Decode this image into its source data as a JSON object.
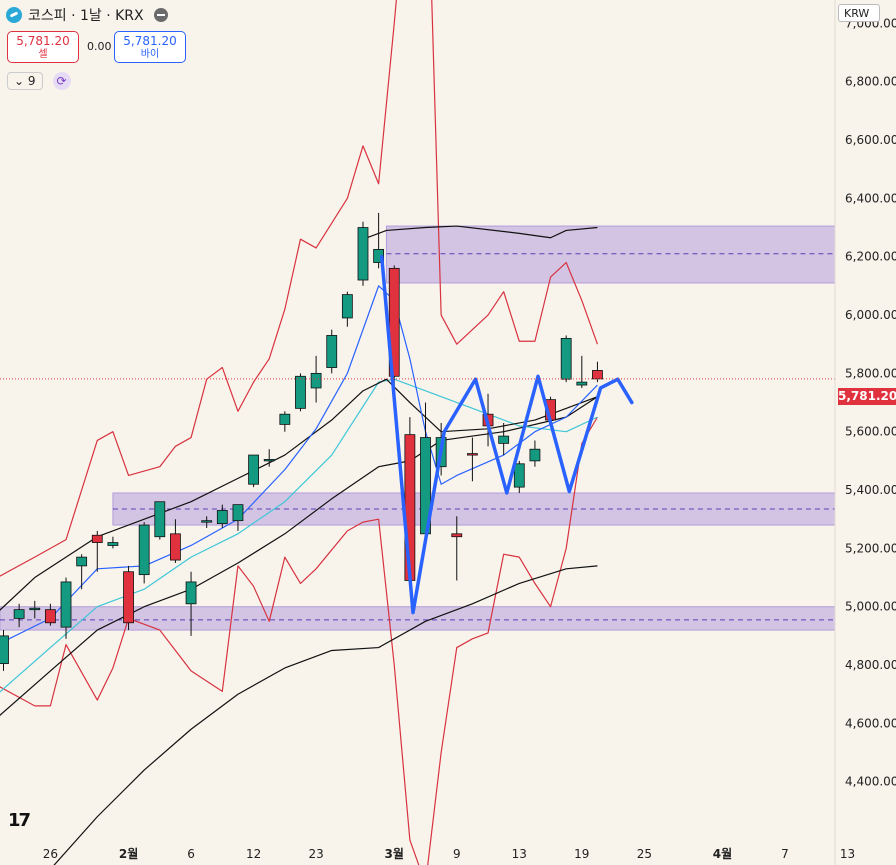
{
  "header": {
    "title": "코스피 · 1날 · KRX",
    "sell_price": "5,781.20",
    "sell_label": "셀",
    "spread": "0.00",
    "buy_price": "5,781.20",
    "buy_label": "바이",
    "indicator_count": "9",
    "currency": "KRW"
  },
  "last_price_label": "5,781.20",
  "tv_logo": "17",
  "colors": {
    "background": "#f8f4ec",
    "up": "#159a82",
    "down": "#e0313f",
    "zone": "#b39ddb",
    "bollinger": "#d8323f",
    "ma_black": "#111111",
    "ma_blue": "#2962ff",
    "ma_cyan": "#3fc6d8",
    "pattern": "#2962ff"
  },
  "chart_data": {
    "type": "candlestick",
    "y_ticks": [
      "7,000.00",
      "6,800.00",
      "6,600.00",
      "6,400.00",
      "6,200.00",
      "6,000.00",
      "5,800.00",
      "5,600.00",
      "5,400.00",
      "5,200.00",
      "5,000.00",
      "4,800.00",
      "4,600.00",
      "4,400.00"
    ],
    "y_tick_values": [
      7000,
      6800,
      6600,
      6400,
      6200,
      6000,
      5800,
      5600,
      5400,
      5200,
      5000,
      4800,
      4600,
      4400
    ],
    "ylim": [
      4190,
      7080
    ],
    "x_ticks": [
      {
        "label": "26",
        "i": 3,
        "bold": false
      },
      {
        "label": "2월",
        "i": 8,
        "bold": true
      },
      {
        "label": "6",
        "i": 12,
        "bold": false
      },
      {
        "label": "12",
        "i": 16,
        "bold": false
      },
      {
        "label": "23",
        "i": 20,
        "bold": false
      },
      {
        "label": "3월",
        "i": 25,
        "bold": true
      },
      {
        "label": "9",
        "i": 29,
        "bold": false
      },
      {
        "label": "13",
        "i": 33,
        "bold": false
      },
      {
        "label": "19",
        "i": 37,
        "bold": false
      },
      {
        "label": "25",
        "i": 41,
        "bold": false
      },
      {
        "label": "4월",
        "i": 46,
        "bold": true
      },
      {
        "label": "7",
        "i": 50,
        "bold": false
      },
      {
        "label": "13",
        "i": 54,
        "bold": false
      }
    ],
    "last_price": 5781.2,
    "candles": [
      {
        "i": 0,
        "o": 4805,
        "h": 4920,
        "l": 4780,
        "c": 4900
      },
      {
        "i": 1,
        "o": 4960,
        "h": 5010,
        "l": 4930,
        "c": 4990
      },
      {
        "i": 2,
        "o": 4995,
        "h": 5020,
        "l": 4960,
        "c": 4995
      },
      {
        "i": 3,
        "o": 4990,
        "h": 5010,
        "l": 4935,
        "c": 4945
      },
      {
        "i": 4,
        "o": 4930,
        "h": 5100,
        "l": 4890,
        "c": 5085
      },
      {
        "i": 5,
        "o": 5140,
        "h": 5180,
        "l": 5060,
        "c": 5170
      },
      {
        "i": 6,
        "o": 5245,
        "h": 5260,
        "l": 5120,
        "c": 5220
      },
      {
        "i": 7,
        "o": 5210,
        "h": 5240,
        "l": 5200,
        "c": 5220
      },
      {
        "i": 8,
        "o": 5120,
        "h": 5140,
        "l": 4920,
        "c": 4945
      },
      {
        "i": 9,
        "o": 5110,
        "h": 5290,
        "l": 5080,
        "c": 5280
      },
      {
        "i": 10,
        "o": 5240,
        "h": 5360,
        "l": 5230,
        "c": 5360
      },
      {
        "i": 11,
        "o": 5250,
        "h": 5300,
        "l": 5150,
        "c": 5160
      },
      {
        "i": 12,
        "o": 5010,
        "h": 5120,
        "l": 4900,
        "c": 5085
      },
      {
        "i": 13,
        "o": 5295,
        "h": 5310,
        "l": 5270,
        "c": 5295
      },
      {
        "i": 14,
        "o": 5285,
        "h": 5350,
        "l": 5270,
        "c": 5330
      },
      {
        "i": 15,
        "o": 5295,
        "h": 5350,
        "l": 5260,
        "c": 5350
      },
      {
        "i": 16,
        "o": 5420,
        "h": 5520,
        "l": 5410,
        "c": 5520
      },
      {
        "i": 17,
        "o": 5505,
        "h": 5540,
        "l": 5480,
        "c": 5505
      },
      {
        "i": 18,
        "o": 5625,
        "h": 5670,
        "l": 5600,
        "c": 5660
      },
      {
        "i": 19,
        "o": 5680,
        "h": 5800,
        "l": 5670,
        "c": 5790
      },
      {
        "i": 20,
        "o": 5750,
        "h": 5860,
        "l": 5700,
        "c": 5800
      },
      {
        "i": 21,
        "o": 5820,
        "h": 5950,
        "l": 5800,
        "c": 5930
      },
      {
        "i": 22,
        "o": 5990,
        "h": 6080,
        "l": 5960,
        "c": 6070
      },
      {
        "i": 23,
        "o": 6120,
        "h": 6320,
        "l": 6100,
        "c": 6300
      },
      {
        "i": 24,
        "o": 6180,
        "h": 6350,
        "l": 6160,
        "c": 6225
      },
      {
        "i": 25,
        "o": 6160,
        "h": 6170,
        "l": 5750,
        "c": 5790
      },
      {
        "i": 26,
        "o": 5590,
        "h": 5650,
        "l": 5060,
        "c": 5090
      },
      {
        "i": 27,
        "o": 5250,
        "h": 5700,
        "l": 5240,
        "c": 5580
      },
      {
        "i": 28,
        "o": 5480,
        "h": 5630,
        "l": 5450,
        "c": 5580
      },
      {
        "i": 29,
        "o": 5250,
        "h": 5310,
        "l": 5090,
        "c": 5240
      },
      {
        "i": 30,
        "o": 5525,
        "h": 5580,
        "l": 5430,
        "c": 5520
      },
      {
        "i": 31,
        "o": 5660,
        "h": 5730,
        "l": 5550,
        "c": 5620
      },
      {
        "i": 32,
        "o": 5560,
        "h": 5630,
        "l": 5520,
        "c": 5585
      },
      {
        "i": 33,
        "o": 5410,
        "h": 5500,
        "l": 5390,
        "c": 5490
      },
      {
        "i": 34,
        "o": 5500,
        "h": 5570,
        "l": 5480,
        "c": 5540
      },
      {
        "i": 35,
        "o": 5710,
        "h": 5720,
        "l": 5630,
        "c": 5640
      },
      {
        "i": 36,
        "o": 5780,
        "h": 5930,
        "l": 5770,
        "c": 5920
      },
      {
        "i": 37,
        "o": 5760,
        "h": 5860,
        "l": 5750,
        "c": 5770
      },
      {
        "i": 38,
        "o": 5810,
        "h": 5840,
        "l": 5770,
        "c": 5781
      }
    ],
    "zones": [
      {
        "top": 6305,
        "bottom": 6110,
        "mid": 6210
      },
      {
        "top": 5390,
        "bottom": 5280,
        "mid": 5335
      },
      {
        "top": 5000,
        "bottom": 4920,
        "mid": 4955
      }
    ],
    "pattern_points": [
      {
        "i": 24.2,
        "v": 6200
      },
      {
        "i": 26.2,
        "v": 4980
      },
      {
        "i": 28.2,
        "v": 5600
      },
      {
        "i": 30.2,
        "v": 5780
      },
      {
        "i": 32.2,
        "v": 5390
      },
      {
        "i": 34.2,
        "v": 5790
      },
      {
        "i": 36.2,
        "v": 5395
      },
      {
        "i": 38.2,
        "v": 5750
      },
      {
        "i": 39.3,
        "v": 5780
      },
      {
        "i": 40.2,
        "v": 5700
      }
    ],
    "ma_black_1": [
      {
        "i": -0.4,
        "v": 4980
      },
      {
        "i": 2,
        "v": 5100
      },
      {
        "i": 6,
        "v": 5240
      },
      {
        "i": 9,
        "v": 5300
      },
      {
        "i": 12,
        "v": 5360
      },
      {
        "i": 15,
        "v": 5440
      },
      {
        "i": 18,
        "v": 5520
      },
      {
        "i": 21,
        "v": 5640
      },
      {
        "i": 23,
        "v": 5740
      },
      {
        "i": 24.5,
        "v": 5780
      },
      {
        "i": 26,
        "v": 5700
      },
      {
        "i": 28,
        "v": 5600
      },
      {
        "i": 31,
        "v": 5610
      },
      {
        "i": 34,
        "v": 5640
      },
      {
        "i": 37,
        "v": 5700
      },
      {
        "i": 38,
        "v": 5720
      }
    ],
    "ma_black_upper": [
      {
        "i": 23,
        "v": 6260
      },
      {
        "i": 24.5,
        "v": 6290
      },
      {
        "i": 27,
        "v": 6300
      },
      {
        "i": 29,
        "v": 6305
      },
      {
        "i": 33,
        "v": 6280
      },
      {
        "i": 35,
        "v": 6265
      },
      {
        "i": 36,
        "v": 6290
      },
      {
        "i": 38,
        "v": 6300
      }
    ],
    "ma_black_lower": [
      {
        "i": 3,
        "v": 4100
      },
      {
        "i": 6,
        "v": 4280
      },
      {
        "i": 9,
        "v": 4440
      },
      {
        "i": 12,
        "v": 4580
      },
      {
        "i": 15,
        "v": 4700
      },
      {
        "i": 18,
        "v": 4790
      },
      {
        "i": 21,
        "v": 4850
      },
      {
        "i": 24,
        "v": 4860
      },
      {
        "i": 27,
        "v": 4950
      },
      {
        "i": 30,
        "v": 5010
      },
      {
        "i": 33,
        "v": 5080
      },
      {
        "i": 36,
        "v": 5130
      },
      {
        "i": 38,
        "v": 5140
      }
    ],
    "ma_black_2": [
      {
        "i": -0.4,
        "v": 4620
      },
      {
        "i": 3,
        "v": 4780
      },
      {
        "i": 6,
        "v": 4920
      },
      {
        "i": 9,
        "v": 5000
      },
      {
        "i": 12,
        "v": 5060
      },
      {
        "i": 15,
        "v": 5150
      },
      {
        "i": 18,
        "v": 5250
      },
      {
        "i": 21,
        "v": 5370
      },
      {
        "i": 24,
        "v": 5480
      },
      {
        "i": 26,
        "v": 5500
      },
      {
        "i": 28,
        "v": 5570
      },
      {
        "i": 32,
        "v": 5600
      },
      {
        "i": 36,
        "v": 5650
      },
      {
        "i": 38,
        "v": 5720
      }
    ],
    "ma_blue": [
      {
        "i": -0.4,
        "v": 4870
      },
      {
        "i": 3,
        "v": 4960
      },
      {
        "i": 6,
        "v": 5130
      },
      {
        "i": 9,
        "v": 5140
      },
      {
        "i": 12,
        "v": 5210
      },
      {
        "i": 15,
        "v": 5300
      },
      {
        "i": 18,
        "v": 5470
      },
      {
        "i": 20,
        "v": 5610
      },
      {
        "i": 22,
        "v": 5800
      },
      {
        "i": 24,
        "v": 6100
      },
      {
        "i": 25,
        "v": 6050
      },
      {
        "i": 26,
        "v": 5850
      },
      {
        "i": 27,
        "v": 5600
      },
      {
        "i": 28,
        "v": 5420
      },
      {
        "i": 29,
        "v": 5450
      },
      {
        "i": 32,
        "v": 5520
      },
      {
        "i": 34,
        "v": 5600
      },
      {
        "i": 36,
        "v": 5650
      },
      {
        "i": 38,
        "v": 5760
      }
    ],
    "ma_cyan": [
      {
        "i": -0.4,
        "v": 4700
      },
      {
        "i": 3,
        "v": 4860
      },
      {
        "i": 6,
        "v": 5000
      },
      {
        "i": 9,
        "v": 5060
      },
      {
        "i": 12,
        "v": 5170
      },
      {
        "i": 15,
        "v": 5250
      },
      {
        "i": 18,
        "v": 5360
      },
      {
        "i": 21,
        "v": 5520
      },
      {
        "i": 24,
        "v": 5770
      },
      {
        "i": 25,
        "v": 5780
      },
      {
        "i": 27,
        "v": 5740
      },
      {
        "i": 30,
        "v": 5680
      },
      {
        "i": 33,
        "v": 5620
      },
      {
        "i": 36,
        "v": 5600
      },
      {
        "i": 38,
        "v": 5650
      }
    ],
    "bb_upper": [
      {
        "i": -0.4,
        "v": 5100
      },
      {
        "i": 2,
        "v": 5170
      },
      {
        "i": 4,
        "v": 5230
      },
      {
        "i": 6,
        "v": 5570
      },
      {
        "i": 7,
        "v": 5600
      },
      {
        "i": 8,
        "v": 5450
      },
      {
        "i": 10,
        "v": 5480
      },
      {
        "i": 11,
        "v": 5550
      },
      {
        "i": 12,
        "v": 5580
      },
      {
        "i": 13,
        "v": 5780
      },
      {
        "i": 14,
        "v": 5820
      },
      {
        "i": 15,
        "v": 5670
      },
      {
        "i": 16,
        "v": 5770
      },
      {
        "i": 17,
        "v": 5850
      },
      {
        "i": 18,
        "v": 6020
      },
      {
        "i": 19,
        "v": 6260
      },
      {
        "i": 20,
        "v": 6230
      },
      {
        "i": 22,
        "v": 6400
      },
      {
        "i": 23,
        "v": 6580
      },
      {
        "i": 24,
        "v": 6450
      },
      {
        "i": 25,
        "v": 7000
      },
      {
        "i": 26,
        "v": 7600
      },
      {
        "i": 27,
        "v": 7800
      },
      {
        "i": 28,
        "v": 6000
      },
      {
        "i": 29,
        "v": 5900
      },
      {
        "i": 31,
        "v": 6000
      },
      {
        "i": 32,
        "v": 6080
      },
      {
        "i": 33,
        "v": 5910
      },
      {
        "i": 34,
        "v": 5910
      },
      {
        "i": 35,
        "v": 6130
      },
      {
        "i": 36,
        "v": 6180
      },
      {
        "i": 37,
        "v": 6050
      },
      {
        "i": 38,
        "v": 5900
      }
    ],
    "bb_lower": [
      {
        "i": -0.4,
        "v": 4730
      },
      {
        "i": 2,
        "v": 4660
      },
      {
        "i": 3,
        "v": 4660
      },
      {
        "i": 4,
        "v": 4870
      },
      {
        "i": 6,
        "v": 4680
      },
      {
        "i": 7,
        "v": 4790
      },
      {
        "i": 8,
        "v": 4960
      },
      {
        "i": 10,
        "v": 4920
      },
      {
        "i": 12,
        "v": 4780
      },
      {
        "i": 14,
        "v": 4710
      },
      {
        "i": 15,
        "v": 5140
      },
      {
        "i": 16,
        "v": 5070
      },
      {
        "i": 17,
        "v": 4950
      },
      {
        "i": 18,
        "v": 5170
      },
      {
        "i": 19,
        "v": 5080
      },
      {
        "i": 20,
        "v": 5130
      },
      {
        "i": 22,
        "v": 5260
      },
      {
        "i": 23,
        "v": 5290
      },
      {
        "i": 24,
        "v": 5300
      },
      {
        "i": 25,
        "v": 4800
      },
      {
        "i": 26,
        "v": 4200
      },
      {
        "i": 27,
        "v": 4050
      },
      {
        "i": 28,
        "v": 4500
      },
      {
        "i": 29,
        "v": 4860
      },
      {
        "i": 30,
        "v": 4890
      },
      {
        "i": 31,
        "v": 4910
      },
      {
        "i": 32,
        "v": 5180
      },
      {
        "i": 33,
        "v": 5170
      },
      {
        "i": 34,
        "v": 5080
      },
      {
        "i": 35,
        "v": 5000
      },
      {
        "i": 36,
        "v": 5200
      },
      {
        "i": 37,
        "v": 5560
      },
      {
        "i": 38,
        "v": 5650
      }
    ]
  }
}
